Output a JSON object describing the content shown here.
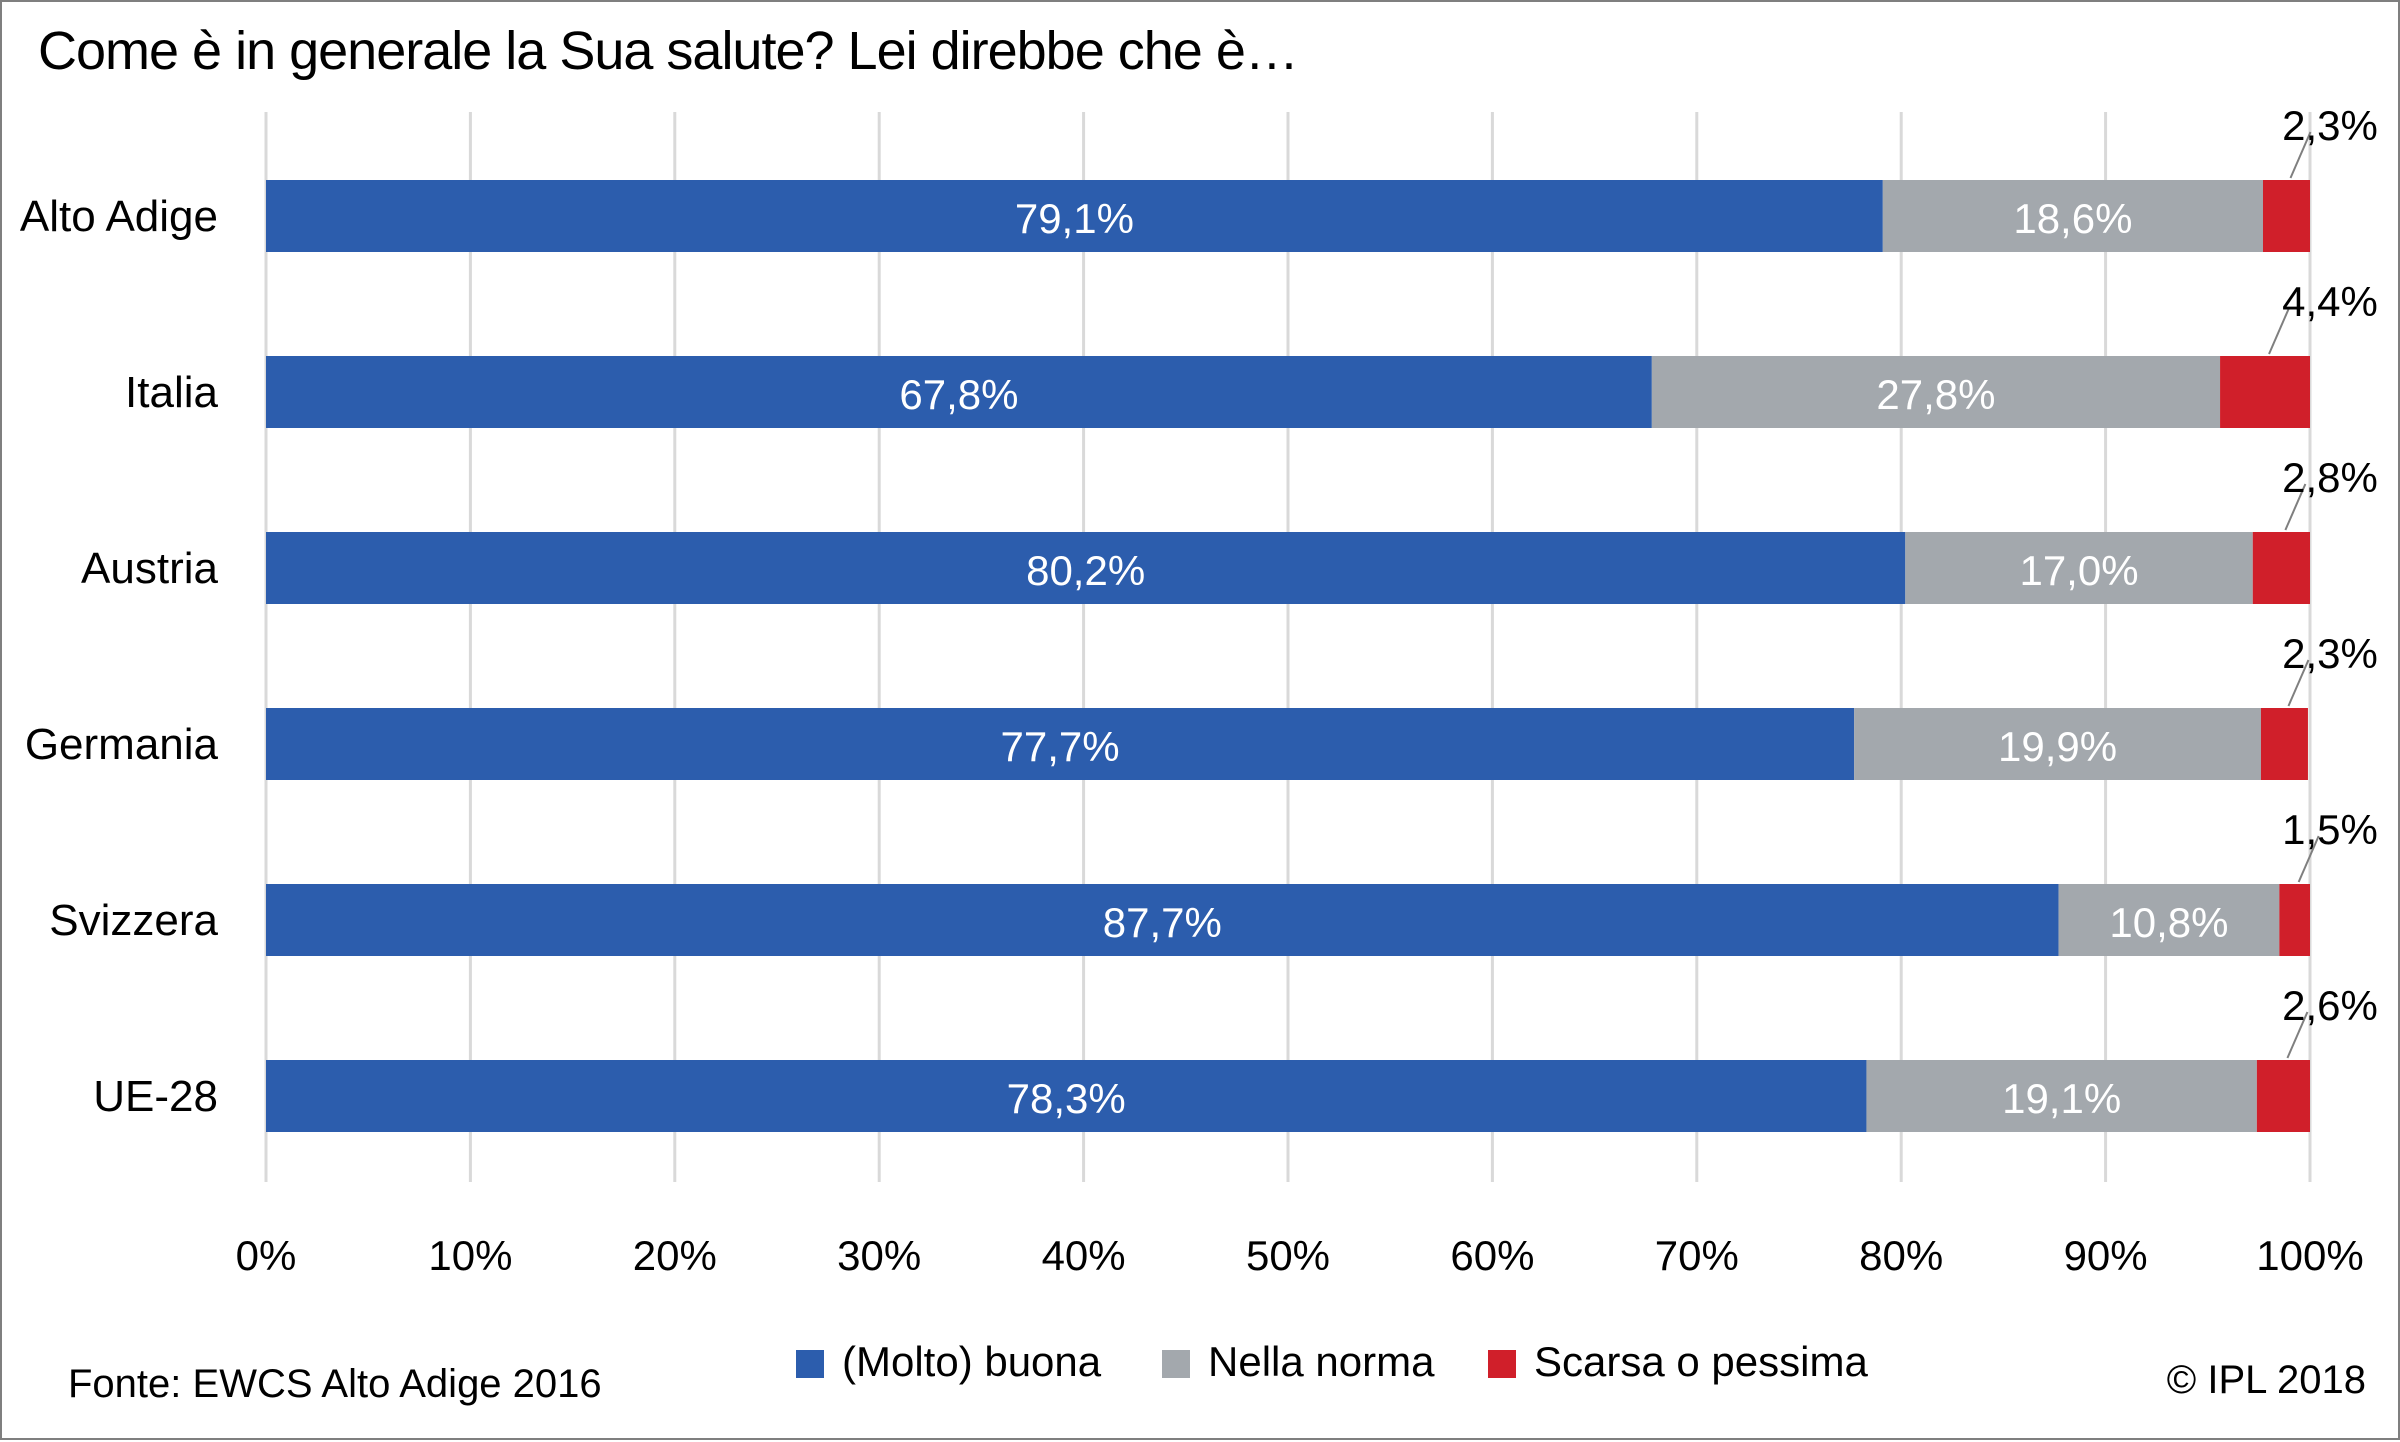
{
  "chart_data": {
    "type": "bar",
    "orientation": "horizontal",
    "stacked": true,
    "title": "Come è in generale la Sua salute? Lei direbbe che è…",
    "categories": [
      "Alto Adige",
      "Italia",
      "Austria",
      "Germania",
      "Svizzera",
      "UE-28"
    ],
    "series": [
      {
        "name": "(Molto) buona",
        "color": "#2c5dad",
        "values": [
          79.1,
          67.8,
          80.2,
          77.7,
          87.7,
          78.3
        ],
        "labels": [
          "79,1%",
          "67,8%",
          "80,2%",
          "77,7%",
          "87,7%",
          "78,3%"
        ]
      },
      {
        "name": "Nella norma",
        "color": "#a3a8ad",
        "values": [
          18.6,
          27.8,
          17.0,
          19.9,
          10.8,
          19.1
        ],
        "labels": [
          "18,6%",
          "27,8%",
          "17,0%",
          "19,9%",
          "10,8%",
          "19,1%"
        ]
      },
      {
        "name": "Scarsa o pessima",
        "color": "#d01f2a",
        "values": [
          2.3,
          4.4,
          2.8,
          2.3,
          1.5,
          2.6
        ],
        "labels": [
          "2,3%",
          "4,4%",
          "2,8%",
          "2,3%",
          "1,5%",
          "2,6%"
        ]
      }
    ],
    "xlim": [
      0,
      100
    ],
    "xticks": [
      "0%",
      "10%",
      "20%",
      "30%",
      "40%",
      "50%",
      "60%",
      "70%",
      "80%",
      "90%",
      "100%"
    ],
    "grid": "vertical",
    "legend": "bottom"
  },
  "source": "Fonte: EWCS Alto Adige 2016",
  "copyright": "© IPL 2018"
}
